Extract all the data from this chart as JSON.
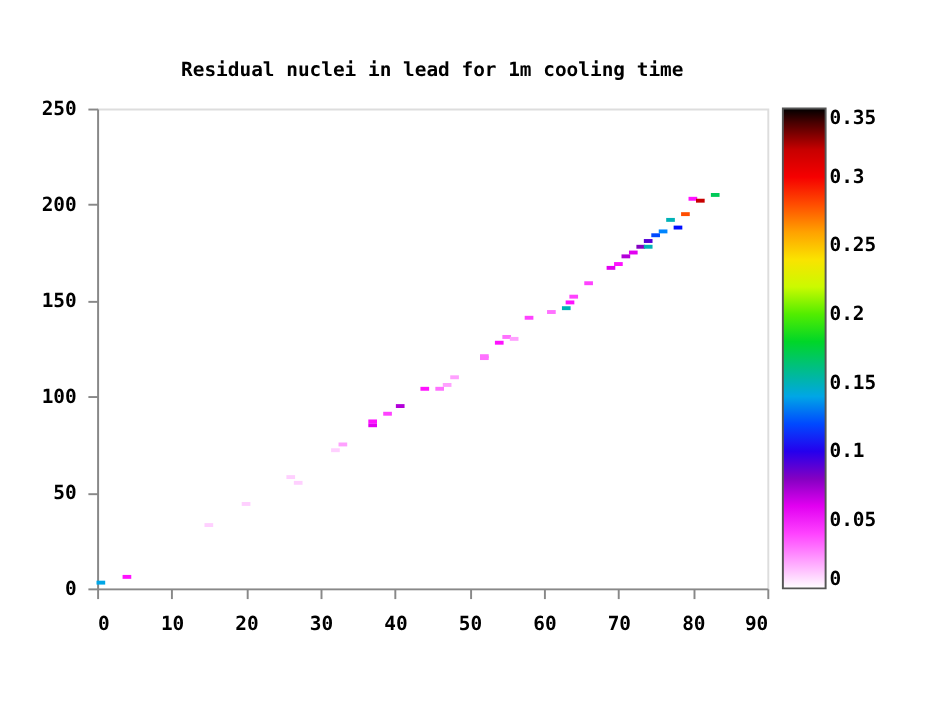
{
  "chart_data": {
    "type": "scatter",
    "title": "Residual nuclei in lead for 1m cooling time",
    "x": [
      0.5,
      4,
      15,
      20,
      26,
      27,
      32,
      33,
      37,
      37,
      39,
      40.7,
      44,
      46,
      47,
      48,
      52,
      52,
      54,
      55,
      56,
      58,
      61,
      63,
      63.5,
      64,
      66,
      69,
      70,
      71,
      72,
      73,
      74,
      74,
      75,
      76,
      78,
      77,
      79,
      80,
      81,
      83
    ],
    "values": [
      3,
      6,
      33,
      44,
      58,
      55,
      72,
      75,
      85,
      87,
      91,
      95,
      104,
      104,
      106,
      110,
      121,
      120,
      128,
      131,
      130,
      141,
      144,
      146,
      149,
      152,
      159,
      167,
      169,
      173,
      175,
      178,
      181,
      178,
      184,
      186,
      188,
      192,
      195,
      203,
      202,
      205
    ],
    "cvalues": [
      0.14,
      0.05,
      0.01,
      0.01,
      0.01,
      0.01,
      0.01,
      0.02,
      0.06,
      0.05,
      0.04,
      0.07,
      0.05,
      0.03,
      0.02,
      0.02,
      0.03,
      0.03,
      0.05,
      0.03,
      0.02,
      0.04,
      0.03,
      0.15,
      0.05,
      0.04,
      0.04,
      0.06,
      0.05,
      0.07,
      0.06,
      0.08,
      0.09,
      0.15,
      0.12,
      0.13,
      0.11,
      0.15,
      0.28,
      0.05,
      0.32,
      0.17
    ],
    "xlim": [
      0,
      90
    ],
    "xticks": [
      0,
      10,
      20,
      30,
      40,
      50,
      60,
      70,
      80,
      90
    ],
    "ylim": [
      0,
      250
    ],
    "yticks": [
      0,
      50,
      100,
      150,
      200,
      250
    ],
    "clim": [
      0,
      0.35
    ],
    "cticks": [
      0,
      0.05,
      0.1,
      0.15,
      0.2,
      0.25,
      0.3,
      0.35
    ],
    "marker": "square",
    "grid": false
  }
}
